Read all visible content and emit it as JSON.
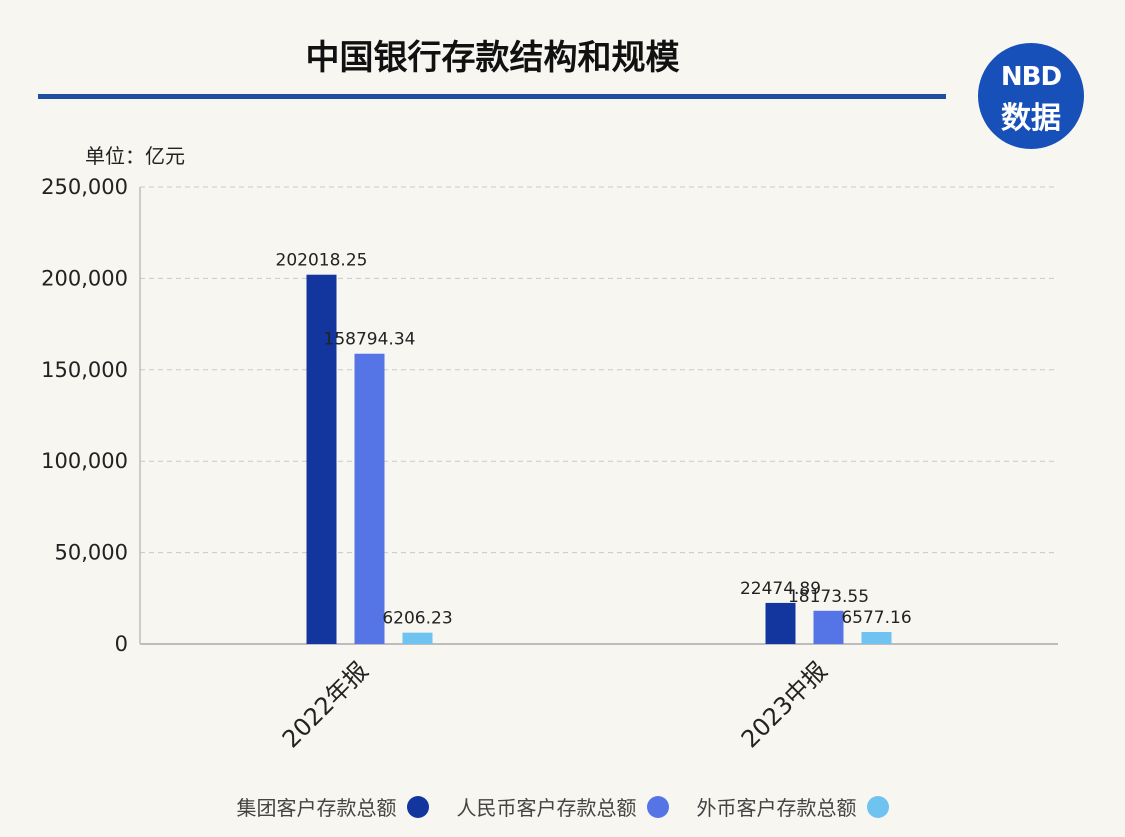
{
  "title": "中国银行存款结构和规模",
  "logo": {
    "line1": "NBD",
    "line2": "数据"
  },
  "unit_label": "单位：亿元",
  "colors": {
    "series1": "#12369e",
    "series2": "#5575e6",
    "series3": "#6ec3f1",
    "title_rule": "#1e4fa0",
    "logo_bg": "#1650b8"
  },
  "chart_data": {
    "type": "bar",
    "title": "中国银行存款结构和规模",
    "categories": [
      "2022年报",
      "2023中报"
    ],
    "series": [
      {
        "name": "集团客户存款总额",
        "values": [
          202018.25,
          22474.89
        ],
        "labels": [
          "202018.25",
          "22474.89"
        ]
      },
      {
        "name": "人民币客户存款总额",
        "values": [
          158794.34,
          18173.55
        ],
        "labels": [
          "158794.34",
          "18173.55"
        ]
      },
      {
        "name": "外币客户存款总额",
        "values": [
          6206.23,
          6577.16
        ],
        "labels": [
          "6206.23",
          "6577.16"
        ]
      }
    ],
    "ylim": [
      0,
      250000
    ],
    "yticks": [
      0,
      50000,
      100000,
      150000,
      200000,
      250000
    ],
    "ytick_labels": [
      "0",
      "50,000",
      "100,000",
      "150,000",
      "200,000",
      "250,000"
    ],
    "xlabel": "",
    "ylabel": "",
    "grid": true,
    "legend_position": "bottom"
  }
}
